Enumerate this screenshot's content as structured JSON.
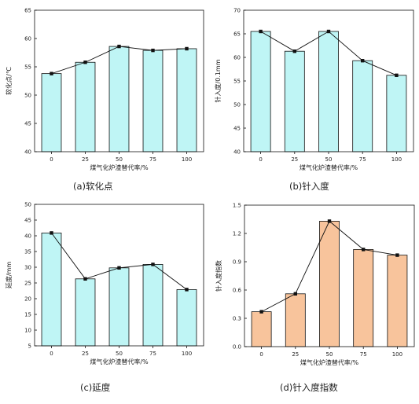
{
  "chart_data": [
    {
      "type": "bar",
      "caption": "(a)软化点",
      "xlabel": "煤气化炉渣替代率/%",
      "ylabel": "软化点/℃",
      "categories": [
        "0",
        "25",
        "50",
        "75",
        "100"
      ],
      "values": [
        53.8,
        55.8,
        58.6,
        57.9,
        58.2
      ],
      "ylim": [
        40,
        65
      ],
      "yticks": [
        "40",
        "45",
        "50",
        "55",
        "60",
        "65"
      ],
      "bar_color": "#bff5f5",
      "line": true,
      "grid": false
    },
    {
      "type": "bar",
      "caption": "(b)针入度",
      "xlabel": "煤气化炉渣替代率/%",
      "ylabel": "针入度/0.1mm",
      "categories": [
        "0",
        "25",
        "50",
        "75",
        "100"
      ],
      "values": [
        65.5,
        61.3,
        65.5,
        59.3,
        56.2
      ],
      "ylim": [
        40,
        70
      ],
      "yticks": [
        "40",
        "45",
        "50",
        "55",
        "60",
        "65",
        "70"
      ],
      "bar_color": "#bff5f5",
      "line": true,
      "grid": false
    },
    {
      "type": "bar",
      "caption": "(c)延度",
      "xlabel": "煤气化炉渣替代率/%",
      "ylabel": "延度/mm",
      "categories": [
        "0",
        "25",
        "50",
        "75",
        "100"
      ],
      "values": [
        40.9,
        26.3,
        29.8,
        30.9,
        22.9
      ],
      "ylim": [
        5,
        50
      ],
      "yticks": [
        "5",
        "10",
        "15",
        "20",
        "25",
        "30",
        "35",
        "40",
        "45",
        "50"
      ],
      "bar_color": "#bff5f5",
      "line": true,
      "grid": false
    },
    {
      "type": "bar",
      "caption": "(d)针入度指数",
      "xlabel": "煤气化炉渣替代率/%",
      "ylabel": "针入度指数",
      "categories": [
        "0",
        "25",
        "50",
        "75",
        "100"
      ],
      "values": [
        0.37,
        0.56,
        1.33,
        1.03,
        0.97
      ],
      "ylim": [
        0,
        1.5
      ],
      "yticks": [
        "0.0",
        "0.3",
        "0.6",
        "0.9",
        "1.2",
        "1.5"
      ],
      "bar_color": "#f8c49c",
      "line": true,
      "grid": false
    }
  ]
}
